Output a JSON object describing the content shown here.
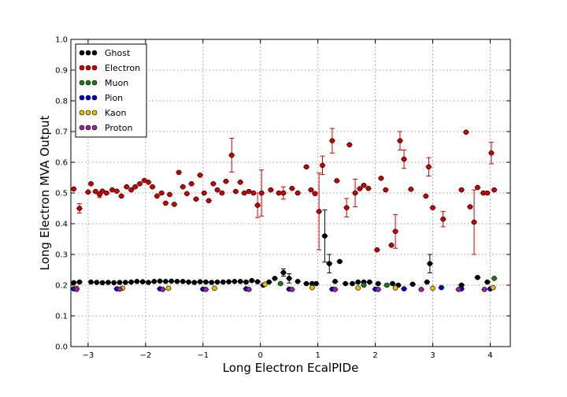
{
  "chart_data": {
    "type": "scatter",
    "xlabel": "Long Electron EcalPIDe",
    "ylabel": "Long Electron MVA Output",
    "xlim": [
      -3.3,
      4.35
    ],
    "ylim": [
      0.0,
      1.0
    ],
    "x_ticks": [
      -3,
      -2,
      -1,
      0,
      1,
      2,
      3,
      4
    ],
    "y_ticks": [
      0.0,
      0.1,
      0.2,
      0.3,
      0.4,
      0.5,
      0.6,
      0.7,
      0.8,
      0.9,
      1.0
    ],
    "grid": true,
    "legend_position": "top-left",
    "series": [
      {
        "name": "Ghost",
        "color": "#000000",
        "points": [
          {
            "x": -3.25,
            "y": 0.208
          },
          {
            "x": -3.15,
            "y": 0.21
          },
          {
            "x": -2.95,
            "y": 0.21
          },
          {
            "x": -2.85,
            "y": 0.209
          },
          {
            "x": -2.75,
            "y": 0.208
          },
          {
            "x": -2.65,
            "y": 0.209
          },
          {
            "x": -2.55,
            "y": 0.208
          },
          {
            "x": -2.45,
            "y": 0.209
          },
          {
            "x": -2.35,
            "y": 0.209
          },
          {
            "x": -2.25,
            "y": 0.21
          },
          {
            "x": -2.15,
            "y": 0.212
          },
          {
            "x": -2.05,
            "y": 0.211
          },
          {
            "x": -1.95,
            "y": 0.209
          },
          {
            "x": -1.85,
            "y": 0.212
          },
          {
            "x": -1.75,
            "y": 0.213
          },
          {
            "x": -1.65,
            "y": 0.212
          },
          {
            "x": -1.55,
            "y": 0.213
          },
          {
            "x": -1.45,
            "y": 0.212
          },
          {
            "x": -1.35,
            "y": 0.212
          },
          {
            "x": -1.25,
            "y": 0.21
          },
          {
            "x": -1.15,
            "y": 0.209
          },
          {
            "x": -1.05,
            "y": 0.211
          },
          {
            "x": -0.95,
            "y": 0.21
          },
          {
            "x": -0.85,
            "y": 0.209
          },
          {
            "x": -0.75,
            "y": 0.21
          },
          {
            "x": -0.65,
            "y": 0.21
          },
          {
            "x": -0.55,
            "y": 0.211
          },
          {
            "x": -0.45,
            "y": 0.212
          },
          {
            "x": -0.35,
            "y": 0.212
          },
          {
            "x": -0.25,
            "y": 0.21
          },
          {
            "x": -0.15,
            "y": 0.215
          },
          {
            "x": -0.05,
            "y": 0.211
          },
          {
            "x": 0.05,
            "y": 0.2
          },
          {
            "x": 0.15,
            "y": 0.21
          },
          {
            "x": 0.25,
            "y": 0.222
          },
          {
            "x": 0.4,
            "y": 0.241,
            "err": 0.012
          },
          {
            "x": 0.5,
            "y": 0.222,
            "err": 0.015
          },
          {
            "x": 0.65,
            "y": 0.212
          },
          {
            "x": 0.8,
            "y": 0.205
          },
          {
            "x": 0.9,
            "y": 0.205
          },
          {
            "x": 0.97,
            "y": 0.205
          },
          {
            "x": 1.12,
            "y": 0.36,
            "err": 0.085
          },
          {
            "x": 1.2,
            "y": 0.27,
            "err": 0.03
          },
          {
            "x": 1.3,
            "y": 0.212
          },
          {
            "x": 1.38,
            "y": 0.277
          },
          {
            "x": 1.48,
            "y": 0.205
          },
          {
            "x": 1.6,
            "y": 0.205
          },
          {
            "x": 1.7,
            "y": 0.21
          },
          {
            "x": 1.8,
            "y": 0.21
          },
          {
            "x": 1.9,
            "y": 0.21
          },
          {
            "x": 2.05,
            "y": 0.205
          },
          {
            "x": 2.3,
            "y": 0.205
          },
          {
            "x": 2.4,
            "y": 0.2
          },
          {
            "x": 2.65,
            "y": 0.203
          },
          {
            "x": 2.9,
            "y": 0.21
          },
          {
            "x": 2.95,
            "y": 0.27,
            "err": 0.03
          },
          {
            "x": 3.5,
            "y": 0.2
          },
          {
            "x": 3.78,
            "y": 0.225
          },
          {
            "x": 3.95,
            "y": 0.21
          }
        ]
      },
      {
        "name": "Electron",
        "color": "#cc0000",
        "points": [
          {
            "x": -3.25,
            "y": 0.513
          },
          {
            "x": -3.15,
            "y": 0.45,
            "err": 0.015
          },
          {
            "x": -3.0,
            "y": 0.503
          },
          {
            "x": -2.95,
            "y": 0.53
          },
          {
            "x": -2.87,
            "y": 0.505
          },
          {
            "x": -2.8,
            "y": 0.495,
            "err": 0.01
          },
          {
            "x": -2.75,
            "y": 0.506
          },
          {
            "x": -2.68,
            "y": 0.5
          },
          {
            "x": -2.58,
            "y": 0.51
          },
          {
            "x": -2.5,
            "y": 0.506
          },
          {
            "x": -2.42,
            "y": 0.49
          },
          {
            "x": -2.33,
            "y": 0.52
          },
          {
            "x": -2.25,
            "y": 0.51
          },
          {
            "x": -2.18,
            "y": 0.52
          },
          {
            "x": -2.1,
            "y": 0.53
          },
          {
            "x": -2.02,
            "y": 0.541
          },
          {
            "x": -1.95,
            "y": 0.535
          },
          {
            "x": -1.88,
            "y": 0.52
          },
          {
            "x": -1.8,
            "y": 0.49
          },
          {
            "x": -1.72,
            "y": 0.5
          },
          {
            "x": -1.65,
            "y": 0.467
          },
          {
            "x": -1.58,
            "y": 0.495
          },
          {
            "x": -1.5,
            "y": 0.463
          },
          {
            "x": -1.42,
            "y": 0.567
          },
          {
            "x": -1.35,
            "y": 0.52
          },
          {
            "x": -1.28,
            "y": 0.498
          },
          {
            "x": -1.2,
            "y": 0.53
          },
          {
            "x": -1.12,
            "y": 0.48
          },
          {
            "x": -1.05,
            "y": 0.558
          },
          {
            "x": -0.98,
            "y": 0.5
          },
          {
            "x": -0.9,
            "y": 0.475
          },
          {
            "x": -0.82,
            "y": 0.53
          },
          {
            "x": -0.75,
            "y": 0.51
          },
          {
            "x": -0.67,
            "y": 0.5
          },
          {
            "x": -0.6,
            "y": 0.538
          },
          {
            "x": -0.5,
            "y": 0.623,
            "err": 0.055
          },
          {
            "x": -0.43,
            "y": 0.505
          },
          {
            "x": -0.35,
            "y": 0.535
          },
          {
            "x": -0.28,
            "y": 0.5
          },
          {
            "x": -0.2,
            "y": 0.505
          },
          {
            "x": -0.12,
            "y": 0.5
          },
          {
            "x": -0.05,
            "y": 0.46,
            "err": 0.04
          },
          {
            "x": 0.02,
            "y": 0.5,
            "err": 0.075
          },
          {
            "x": 0.18,
            "y": 0.51
          },
          {
            "x": 0.32,
            "y": 0.5
          },
          {
            "x": 0.4,
            "y": 0.5,
            "err": 0.02
          },
          {
            "x": 0.55,
            "y": 0.515
          },
          {
            "x": 0.65,
            "y": 0.5
          },
          {
            "x": 0.8,
            "y": 0.585
          },
          {
            "x": 0.88,
            "y": 0.51
          },
          {
            "x": 0.95,
            "y": 0.498
          },
          {
            "x": 1.02,
            "y": 0.44,
            "err": 0.125
          },
          {
            "x": 1.08,
            "y": 0.59,
            "err": 0.03
          },
          {
            "x": 1.25,
            "y": 0.67,
            "err": 0.04
          },
          {
            "x": 1.33,
            "y": 0.54
          },
          {
            "x": 1.5,
            "y": 0.452,
            "err": 0.03
          },
          {
            "x": 1.55,
            "y": 0.657
          },
          {
            "x": 1.65,
            "y": 0.5,
            "err": 0.045
          },
          {
            "x": 1.73,
            "y": 0.514
          },
          {
            "x": 1.8,
            "y": 0.525
          },
          {
            "x": 1.88,
            "y": 0.515
          },
          {
            "x": 2.03,
            "y": 0.315
          },
          {
            "x": 2.1,
            "y": 0.548
          },
          {
            "x": 2.18,
            "y": 0.51
          },
          {
            "x": 2.28,
            "y": 0.33
          },
          {
            "x": 2.35,
            "y": 0.375,
            "err": 0.055
          },
          {
            "x": 2.43,
            "y": 0.67,
            "err": 0.03
          },
          {
            "x": 2.5,
            "y": 0.61,
            "err": 0.03
          },
          {
            "x": 2.62,
            "y": 0.512
          },
          {
            "x": 2.88,
            "y": 0.49
          },
          {
            "x": 2.93,
            "y": 0.585,
            "err": 0.03
          },
          {
            "x": 3.0,
            "y": 0.452
          },
          {
            "x": 3.18,
            "y": 0.415,
            "err": 0.025
          },
          {
            "x": 3.5,
            "y": 0.51
          },
          {
            "x": 3.58,
            "y": 0.698
          },
          {
            "x": 3.65,
            "y": 0.455
          },
          {
            "x": 3.72,
            "y": 0.405,
            "err": 0.105
          },
          {
            "x": 3.78,
            "y": 0.518
          },
          {
            "x": 3.88,
            "y": 0.5
          },
          {
            "x": 3.95,
            "y": 0.5
          },
          {
            "x": 4.02,
            "y": 0.63,
            "err": 0.035
          },
          {
            "x": 4.07,
            "y": 0.51
          }
        ]
      },
      {
        "name": "Muon",
        "color": "#1e7a1e",
        "points": [
          {
            "x": 0.35,
            "y": 0.205
          },
          {
            "x": 1.8,
            "y": 0.2
          },
          {
            "x": 2.2,
            "y": 0.2
          },
          {
            "x": 4.07,
            "y": 0.222
          }
        ]
      },
      {
        "name": "Pion",
        "color": "#0000cc",
        "points": [
          {
            "x": -3.25,
            "y": 0.188
          },
          {
            "x": -2.5,
            "y": 0.188
          },
          {
            "x": -1.75,
            "y": 0.188
          },
          {
            "x": -1.0,
            "y": 0.187
          },
          {
            "x": -0.25,
            "y": 0.188
          },
          {
            "x": 0.5,
            "y": 0.187
          },
          {
            "x": 1.25,
            "y": 0.187
          },
          {
            "x": 2.0,
            "y": 0.187
          },
          {
            "x": 2.5,
            "y": 0.188
          },
          {
            "x": 3.15,
            "y": 0.192
          },
          {
            "x": 3.5,
            "y": 0.188
          },
          {
            "x": 4.0,
            "y": 0.188
          }
        ]
      },
      {
        "name": "Kaon",
        "color": "#e6c000",
        "points": [
          {
            "x": -3.2,
            "y": 0.19
          },
          {
            "x": -2.4,
            "y": 0.19
          },
          {
            "x": -1.6,
            "y": 0.19
          },
          {
            "x": -0.8,
            "y": 0.19
          },
          {
            "x": 0.08,
            "y": 0.203
          },
          {
            "x": 0.9,
            "y": 0.192
          },
          {
            "x": 1.7,
            "y": 0.191
          },
          {
            "x": 2.35,
            "y": 0.191
          },
          {
            "x": 3.0,
            "y": 0.19
          },
          {
            "x": 4.05,
            "y": 0.192
          }
        ]
      },
      {
        "name": "Proton",
        "color": "#a020a0",
        "points": [
          {
            "x": -3.2,
            "y": 0.186
          },
          {
            "x": -2.45,
            "y": 0.187
          },
          {
            "x": -1.7,
            "y": 0.186
          },
          {
            "x": -0.95,
            "y": 0.186
          },
          {
            "x": -0.2,
            "y": 0.186
          },
          {
            "x": 0.55,
            "y": 0.186
          },
          {
            "x": 1.3,
            "y": 0.186
          },
          {
            "x": 2.05,
            "y": 0.186
          },
          {
            "x": 2.8,
            "y": 0.186
          },
          {
            "x": 3.45,
            "y": 0.186
          },
          {
            "x": 3.9,
            "y": 0.186
          }
        ]
      }
    ]
  }
}
